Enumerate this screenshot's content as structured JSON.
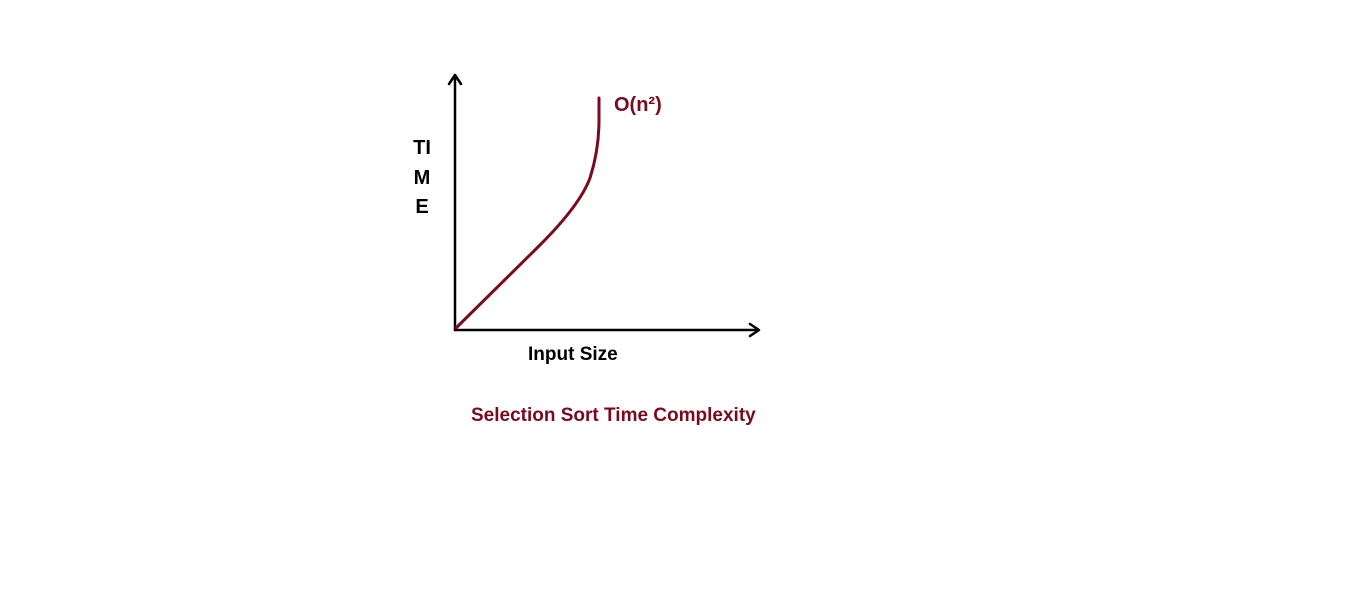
{
  "axes": {
    "y_label": "TIME",
    "x_label": "Input Size"
  },
  "curve": {
    "label": "O(n²)",
    "color": "#7a0a1e"
  },
  "caption": {
    "text": "Selection Sort Time Complexity",
    "color": "#7a0a1e"
  }
}
